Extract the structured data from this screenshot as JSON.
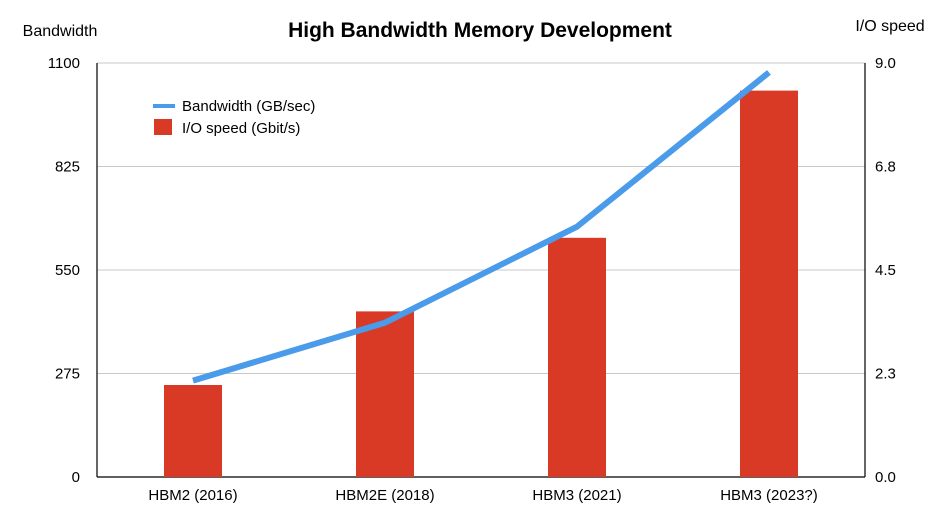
{
  "chart_data": {
    "type": "bar",
    "title": "High Bandwidth Memory Development",
    "categories": [
      "HBM2 (2016)",
      "HBM2E (2018)",
      "HBM3 (2021)",
      "HBM3 (2023?)"
    ],
    "y_left": {
      "label": "Bandwidth",
      "ticks": [
        "0",
        "275",
        "550",
        "825",
        "1100"
      ],
      "range": [
        0,
        1100
      ]
    },
    "y_right": {
      "label": "I/O speed",
      "ticks": [
        "0.0",
        "2.3",
        "4.5",
        "6.8",
        "9.0"
      ],
      "range": [
        0,
        9.0
      ]
    },
    "series": [
      {
        "name": "I/O speed (Gbit/s)",
        "kind": "bar",
        "axis": "right",
        "color": "#d93a26",
        "values": [
          2.0,
          3.6,
          5.2,
          8.4
        ]
      },
      {
        "name": "Bandwidth (GB/sec)",
        "kind": "line",
        "axis": "left",
        "color": "#4a9bea",
        "values": [
          256,
          410,
          665,
          1075
        ]
      }
    ],
    "legend": "top-left",
    "grid": true
  }
}
